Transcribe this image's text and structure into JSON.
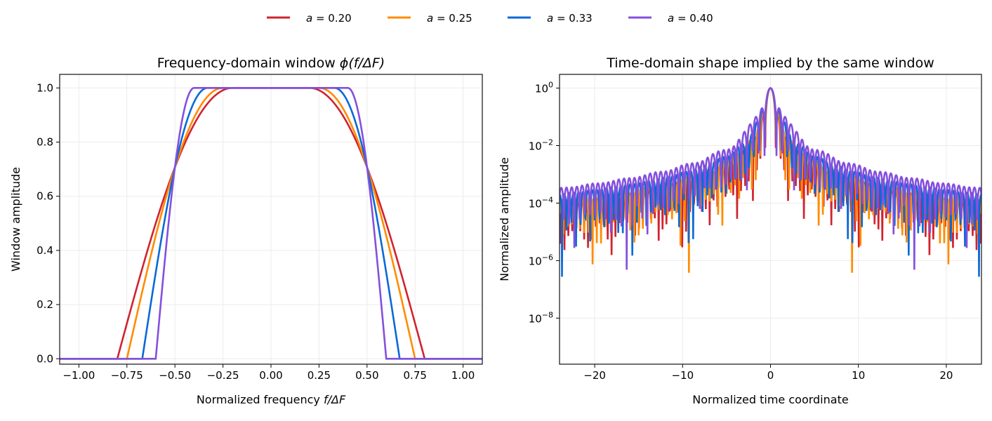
{
  "legend": {
    "placement": "top-center",
    "entries": [
      {
        "var": "a",
        "eq": " = ",
        "val": "0.20",
        "color": "#d1232f"
      },
      {
        "var": "a",
        "eq": " = ",
        "val": "0.25",
        "color": "#ff8c00"
      },
      {
        "var": "a",
        "eq": " = ",
        "val": "0.33",
        "color": "#0a6ad6"
      },
      {
        "var": "a",
        "eq": " = ",
        "val": "0.40",
        "color": "#8450dd"
      }
    ]
  },
  "chart_data": [
    {
      "type": "line",
      "title_main": "Frequency-domain window ",
      "title_math": "ϕ(f/ΔF)",
      "xlabel_main": "Normalized frequency ",
      "xlabel_math": "f/ΔF",
      "ylabel": "Window amplitude",
      "xlim": [
        -1.1,
        1.1
      ],
      "ylim": [
        -0.02,
        1.05
      ],
      "xticks": [
        -1.0,
        -0.75,
        -0.5,
        -0.25,
        0.0,
        0.25,
        0.5,
        0.75,
        1.0
      ],
      "xtick_labels": [
        "−1.00",
        "−0.75",
        "−0.50",
        "−0.25",
        "0.00",
        "0.25",
        "0.50",
        "0.75",
        "1.00"
      ],
      "yticks": [
        0.0,
        0.2,
        0.4,
        0.6,
        0.8,
        1.0
      ],
      "ytick_labels": [
        "0.0",
        "0.2",
        "0.4",
        "0.6",
        "0.8",
        "1.0"
      ],
      "grid": true,
      "series": [
        {
          "a": 0.2,
          "flat_until": 0.2,
          "zero_from": 0.8,
          "value_at_0.5": 0.707
        },
        {
          "a": 0.25,
          "flat_until": 0.25,
          "zero_from": 0.75,
          "value_at_0.5": 0.707
        },
        {
          "a": 0.33,
          "flat_until": 0.33,
          "zero_from": 0.67,
          "value_at_0.5": 0.707
        },
        {
          "a": 0.4,
          "flat_until": 0.4,
          "zero_from": 0.6,
          "value_at_0.5": 0.707
        }
      ]
    },
    {
      "type": "line",
      "title": "Time-domain shape implied by the same window",
      "xlabel": "Normalized time coordinate",
      "ylabel": "Normalized amplitude",
      "xlim": [
        -24,
        24
      ],
      "ylim": [
        2.5e-10,
        3.0
      ],
      "yscale": "log",
      "xticks": [
        -20,
        -10,
        0,
        10,
        20
      ],
      "xtick_labels": [
        "−20",
        "−10",
        "0",
        "10",
        "20"
      ],
      "yticks": [
        1,
        0.01,
        0.0001,
        1e-06,
        1e-08
      ],
      "ytick_labels": [
        {
          "base": "10",
          "exp": "0"
        },
        {
          "base": "10",
          "exp": "−2"
        },
        {
          "base": "10",
          "exp": "−4"
        },
        {
          "base": "10",
          "exp": "−6"
        },
        {
          "base": "10",
          "exp": "−8"
        }
      ],
      "grid": true,
      "peak_value": 1.0,
      "peak_at": 0
    }
  ]
}
